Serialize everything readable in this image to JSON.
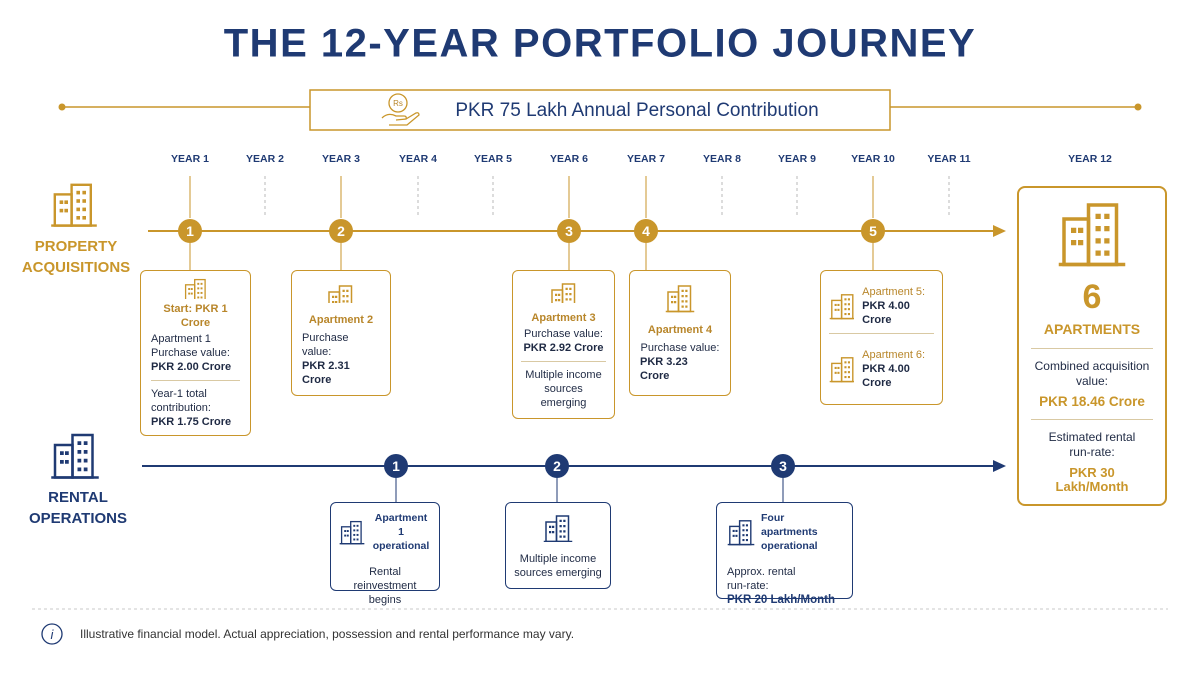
{
  "title": "THE 12-YEAR PORTFOLIO JOURNEY",
  "banner": {
    "icon": "Rs",
    "text": "PKR 75 Lakh Annual Personal Contribution"
  },
  "years": [
    "YEAR 1",
    "YEAR 2",
    "YEAR 3",
    "YEAR 4",
    "YEAR 5",
    "YEAR 6",
    "YEAR 7",
    "YEAR 8",
    "YEAR 9",
    "YEAR 10",
    "YEAR 11",
    "YEAR 12"
  ],
  "property": {
    "label": "PROPERTY ACQUISITIONS",
    "markers": [
      "1",
      "2",
      "3",
      "4",
      "5"
    ],
    "cards": [
      [
        "Start: PKR 1 Crore",
        "Apartment 1",
        "Purchase value:",
        "PKR 2.00 Crore",
        "Year-1 total contribution:",
        "PKR 1.75 Crore"
      ],
      [
        "Apartment 2",
        "Purchase value:",
        "PKR 2.31 Crore"
      ],
      [
        "Apartment 3",
        "Purchase value:",
        "PKR 2.92 Crore",
        "Multiple income sources emerging"
      ],
      [
        "Apartment 4",
        "Purchase value:",
        "PKR 3.23 Crore"
      ],
      [
        "Apartment 5:",
        "PKR 4.00 Crore",
        "Apartment 6:",
        "PKR 4.00 Crore"
      ]
    ]
  },
  "final": {
    "count": "6",
    "unit": "APARTMENTS",
    "value_label": "Combined acquisition value:",
    "value": "PKR 18.46 Crore",
    "rent_label": "Estimated rental run-rate:",
    "rent": "PKR 30 Lakh/Month"
  },
  "rental": {
    "label": "RENTAL OPERATIONS",
    "markers": [
      "1",
      "2",
      "3"
    ],
    "cards": [
      [
        "Apartment 1 operational",
        "Rental reinvestment begins"
      ],
      [
        "Multiple income sources emerging"
      ],
      [
        "Four apartments operational",
        "Approx. rental run-rate:",
        "PKR 20 Lakh/Month"
      ]
    ]
  },
  "footer": {
    "icon": "i",
    "note": "Illustrative financial model. Actual appreciation, possession and rental performance may vary."
  }
}
